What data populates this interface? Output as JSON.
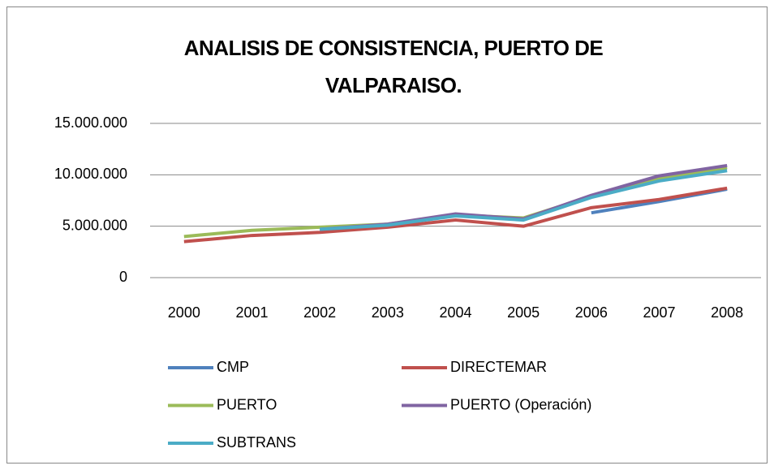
{
  "chart_data": {
    "type": "line",
    "title": "ANALISIS DE CONSISTENCIA, PUERTO DE VALPARAISO.",
    "categories": [
      "2000",
      "2001",
      "2002",
      "2003",
      "2004",
      "2005",
      "2006",
      "2007",
      "2008"
    ],
    "series": [
      {
        "name": "CMP",
        "color": "#4f81bd",
        "values": [
          null,
          null,
          null,
          null,
          null,
          null,
          6300000,
          7400000,
          8600000
        ]
      },
      {
        "name": "DIRECTEMAR",
        "color": "#c0504d",
        "values": [
          3500000,
          4100000,
          4400000,
          4900000,
          5600000,
          5000000,
          6800000,
          7600000,
          8700000
        ]
      },
      {
        "name": "PUERTO",
        "color": "#9bbb59",
        "values": [
          4000000,
          4600000,
          4900000,
          5200000,
          6100000,
          5800000,
          7900000,
          9600000,
          10700000
        ]
      },
      {
        "name": "PUERTO (Operación)",
        "color": "#8064a2",
        "values": [
          null,
          null,
          4700000,
          5200000,
          6200000,
          5700000,
          8000000,
          9900000,
          10900000
        ]
      },
      {
        "name": "SUBTRANS",
        "color": "#4bacc6",
        "values": [
          null,
          null,
          4700000,
          5100000,
          6000000,
          5600000,
          7800000,
          9400000,
          10400000
        ]
      }
    ],
    "ylim": [
      0,
      15000000
    ],
    "yticks": [
      0,
      {
        "value": 5000000,
        "label": "5.000.000"
      },
      {
        "value": 10000000,
        "label": "10.000.000"
      },
      {
        "value": 15000000,
        "label": "15.000.000"
      }
    ],
    "grid": true,
    "legend": "bottom"
  }
}
